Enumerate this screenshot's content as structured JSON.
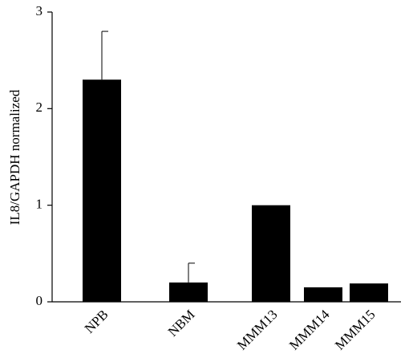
{
  "chart_data": {
    "type": "bar",
    "ylabel": "IL8/GAPDH normalized",
    "categories": [
      "NPB",
      "NBM",
      "MMM13",
      "MMM14",
      "MMM15"
    ],
    "values": [
      2.3,
      0.2,
      1.0,
      0.15,
      0.19
    ],
    "errors": [
      0.5,
      0.2,
      null,
      null,
      null
    ],
    "color": "#000000",
    "ylim": [
      0,
      3
    ],
    "yticks": [
      0,
      1,
      2,
      3
    ]
  }
}
